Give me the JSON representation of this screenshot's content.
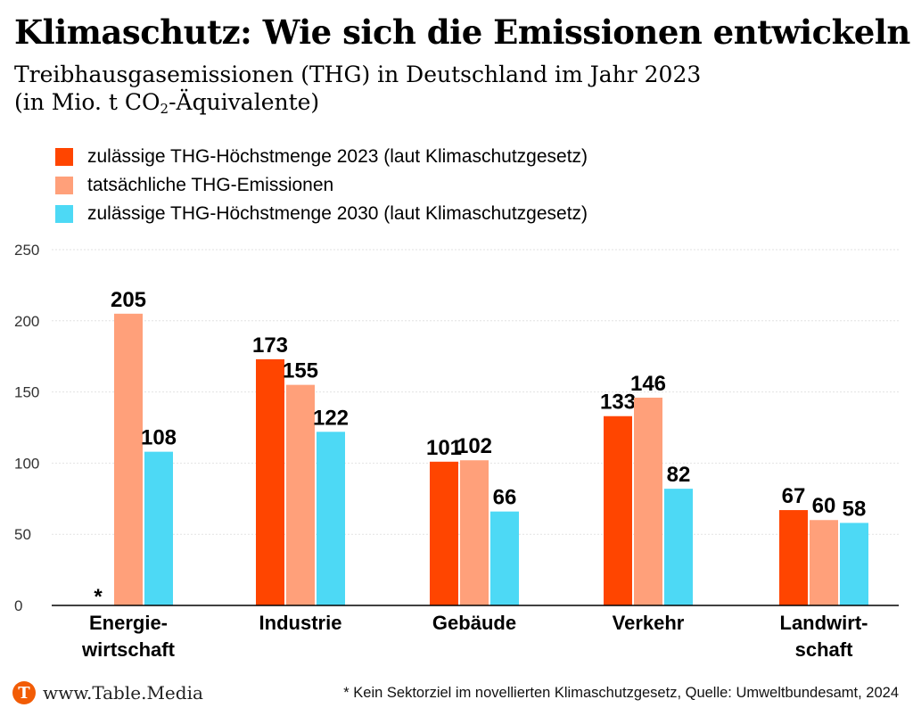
{
  "header": {
    "title": "Klimaschutz: Wie sich die Emissionen entwickeln",
    "subtitle_line1": "Treibhausgasemissionen (THG) in Deutschland im Jahr 2023",
    "subtitle_line2_pre": "(in Mio. t CO",
    "subtitle_line2_sub": "2",
    "subtitle_line2_post": "-Äquivalente)"
  },
  "chart_data": {
    "type": "bar",
    "categories": [
      "Energie-\nwirtschaft",
      "Industrie",
      "Gebäude",
      "Verkehr",
      "Landwirt-\nschaft"
    ],
    "series": [
      {
        "name": "zulässige THG-Höchstmenge 2023 (laut Klimaschutzgesetz)",
        "color": "#ff4500",
        "values": [
          null,
          173,
          101,
          133,
          67
        ]
      },
      {
        "name": "tatsächliche THG-Emissionen",
        "color": "#ffa07a",
        "values": [
          205,
          155,
          102,
          146,
          60
        ]
      },
      {
        "name": "zulässige THG-Höchstmenge 2030 (laut Klimaschutzgesetz)",
        "color": "#4dd9f5",
        "values": [
          108,
          122,
          66,
          82,
          58
        ]
      }
    ],
    "missing_marker": "*",
    "ylim": [
      0,
      250
    ],
    "yticks": [
      0,
      50,
      100,
      150,
      200,
      250
    ],
    "grid": true,
    "legend_position": "top-left"
  },
  "footer": {
    "logo_letter": "T",
    "logo_text": "www.Table.Media",
    "note": "* Kein Sektorziel im novellierten Klimaschutzgesetz, Quelle: Umweltbundesamt, 2024"
  }
}
